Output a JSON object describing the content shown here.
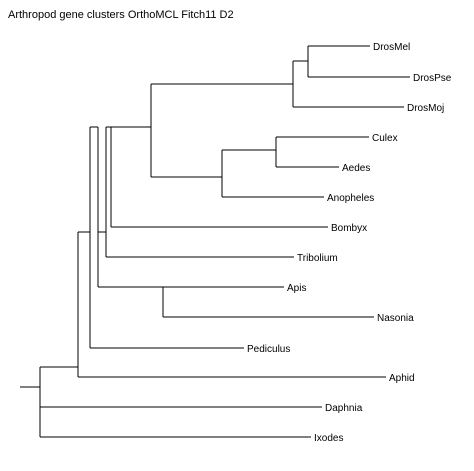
{
  "title": "Arthropod gene clusters OrthoMCL Fitch11 D2",
  "taxa": [
    {
      "id": "drosmel",
      "label": "DrosMel"
    },
    {
      "id": "drospse",
      "label": "DrosPse"
    },
    {
      "id": "drosmoj",
      "label": "DrosMoj"
    },
    {
      "id": "culex",
      "label": "Culex"
    },
    {
      "id": "aedes",
      "label": "Aedes"
    },
    {
      "id": "anopheles",
      "label": "Anopheles"
    },
    {
      "id": "bombyx",
      "label": "Bombyx"
    },
    {
      "id": "tribolium",
      "label": "Tribolium"
    },
    {
      "id": "apis",
      "label": "Apis"
    },
    {
      "id": "nasonia",
      "label": "Nasonia"
    },
    {
      "id": "pediculus",
      "label": "Pediculus"
    },
    {
      "id": "aphid",
      "label": "Aphid"
    },
    {
      "id": "daphnia",
      "label": "Daphnia"
    },
    {
      "id": "ixodes",
      "label": "Ixodes"
    }
  ]
}
